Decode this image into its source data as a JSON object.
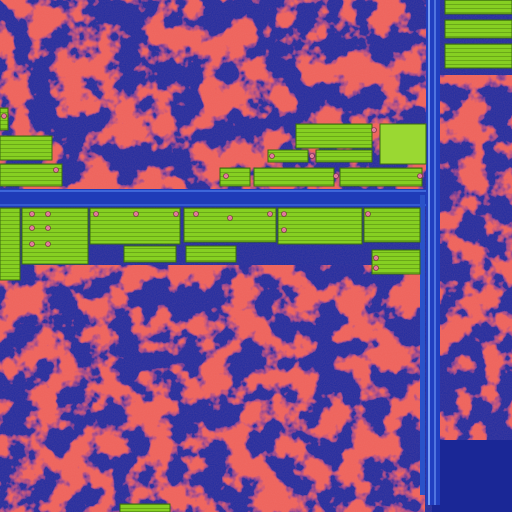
{
  "image": {
    "kind": "integrated-circuit-die-micrograph",
    "palette": {
      "substrate": "#1b2ba0",
      "substrate_dark": "#0c1466",
      "logic_red": "#d8261e",
      "logic_red_dark": "#8c1a2a",
      "cell_green": "#7ec81e",
      "cell_green_light": "#a8e040",
      "cell_edge": "#3a6a10",
      "bus_blue": "#2a52c8",
      "bus_highlight": "#7fa8ff",
      "contact_pink": "#e07a9a"
    }
  }
}
